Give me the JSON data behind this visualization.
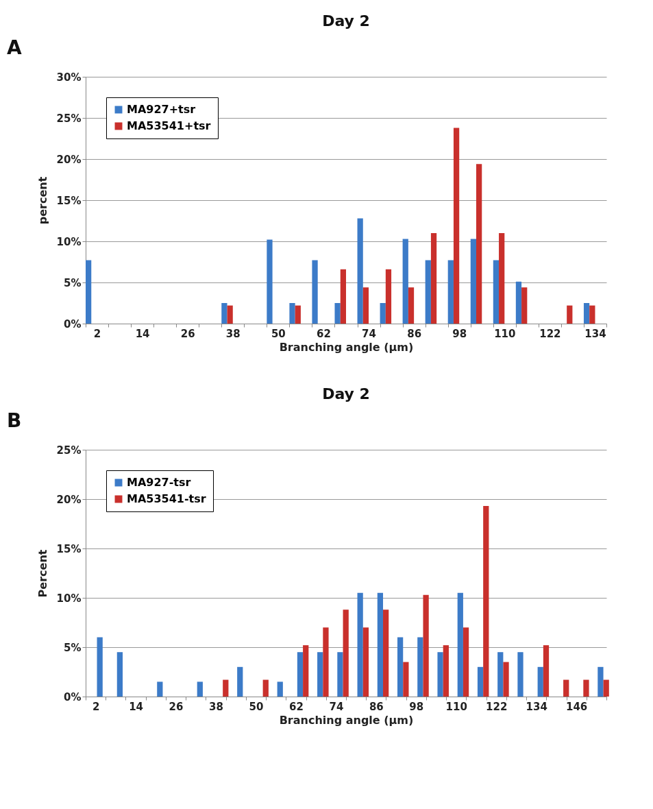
{
  "chart_data": [
    {
      "type": "bar",
      "title": "Day 2",
      "xlabel": "Branching angle (µm)",
      "ylabel": "percent",
      "annotations": [
        "A"
      ],
      "categories": [
        "2",
        null,
        "14",
        null,
        "26",
        null,
        "38",
        null,
        "50",
        null,
        "62",
        null,
        "74",
        null,
        "86",
        null,
        "98",
        null,
        "110",
        null,
        "122",
        null,
        "134"
      ],
      "series": [
        {
          "name": "MA927+tsr",
          "color": "#3c7bc8",
          "values": [
            7.7,
            0,
            0,
            0,
            0,
            0,
            2.5,
            0,
            10.2,
            2.5,
            7.7,
            2.5,
            12.8,
            2.5,
            10.3,
            7.7,
            7.7,
            10.3,
            7.7,
            5.1,
            0,
            0,
            2.5
          ]
        },
        {
          "name": "MA53541+tsr",
          "color": "#c9302c",
          "values": [
            0,
            0,
            0,
            0,
            0,
            0,
            2.2,
            0,
            0,
            2.2,
            0,
            6.6,
            4.4,
            6.6,
            4.4,
            11.0,
            23.8,
            19.4,
            11.0,
            4.4,
            0,
            2.2,
            2.2
          ]
        }
      ],
      "ylim": [
        0,
        30
      ],
      "yticks": [
        {
          "value": 0,
          "label": "0%"
        },
        {
          "value": 5,
          "label": "5%"
        },
        {
          "value": 10,
          "label": "10%"
        },
        {
          "value": 15,
          "label": "15%"
        },
        {
          "value": 20,
          "label": "20%"
        },
        {
          "value": 25,
          "label": "25%"
        },
        {
          "value": 30,
          "label": "30%"
        }
      ],
      "grid": "y",
      "legend": "top left"
    },
    {
      "type": "bar",
      "title": "Day 2",
      "xlabel": "Branching angle (µm)",
      "ylabel": "Percent",
      "annotations": [
        "B"
      ],
      "categories": [
        "2",
        null,
        "14",
        null,
        "26",
        null,
        "38",
        null,
        "50",
        null,
        "62",
        null,
        "74",
        null,
        "86",
        null,
        "98",
        null,
        "110",
        null,
        "122",
        null,
        "134",
        null,
        "146",
        null
      ],
      "series": [
        {
          "name": "MA927-tsr",
          "color": "#3c7bc8",
          "values": [
            6.0,
            4.5,
            0,
            1.5,
            0,
            1.5,
            0,
            3.0,
            0,
            1.5,
            4.5,
            4.5,
            4.5,
            10.5,
            10.5,
            6.0,
            6.0,
            4.5,
            10.5,
            3.0,
            4.5,
            4.5,
            3.0,
            0,
            0,
            3.0
          ]
        },
        {
          "name": "MA53541-tsr",
          "color": "#c9302c",
          "values": [
            0,
            0,
            0,
            0,
            0,
            0,
            1.7,
            0,
            1.7,
            0,
            5.2,
            7.0,
            8.8,
            7.0,
            8.8,
            3.5,
            10.3,
            5.2,
            7.0,
            19.3,
            3.5,
            0,
            5.2,
            1.7,
            1.7,
            1.7
          ]
        }
      ],
      "ylim": [
        0,
        25
      ],
      "yticks": [
        {
          "value": 0,
          "label": "0%"
        },
        {
          "value": 5,
          "label": "5%"
        },
        {
          "value": 10,
          "label": "10%"
        },
        {
          "value": 15,
          "label": "15%"
        },
        {
          "value": 20,
          "label": "20%"
        },
        {
          "value": 25,
          "label": "25%"
        }
      ],
      "grid": "y",
      "legend": "top left"
    }
  ]
}
